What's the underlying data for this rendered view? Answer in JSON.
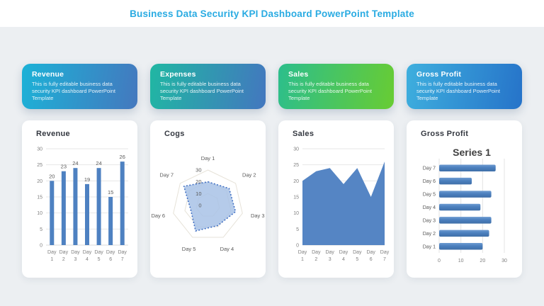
{
  "header": {
    "title": "Business Data Security KPI Dashboard PowerPoint Template"
  },
  "kpi_cards": [
    {
      "title": "Revenue",
      "description": "This is fully editable business data security KPI dashboard PowerPoint Template",
      "gradient_from": "#1CB2D7",
      "gradient_to": "#4478BE"
    },
    {
      "title": "Expenses",
      "description": "This is fully editable business data security KPI dashboard PowerPoint Template",
      "gradient_from": "#20B7A3",
      "gradient_to": "#4377BF"
    },
    {
      "title": "Sales",
      "description": "This is fully editable business data security KPI dashboard PowerPoint Template",
      "gradient_from": "#2CBE8C",
      "gradient_to": "#68CC33"
    },
    {
      "title": "Gross Profit",
      "description": "This is fully editable business data security KPI dashboard PowerPoint Template",
      "gradient_from": "#3EAFDE",
      "gradient_to": "#2673C9"
    }
  ],
  "chart_data": [
    {
      "type": "bar",
      "panel_title": "Revenue",
      "categories": [
        "Day 1",
        "Day 2",
        "Day 3",
        "Day 4",
        "Day 5",
        "Day 6",
        "Day 7"
      ],
      "values": [
        20,
        23,
        24,
        19,
        24,
        15,
        26
      ],
      "ylim": [
        0,
        30
      ],
      "yticks": [
        0,
        5,
        10,
        15,
        20,
        25,
        30
      ],
      "data_labels": true,
      "grid": true,
      "legend": false,
      "bar_color": "#4E81C1"
    },
    {
      "type": "radar",
      "panel_title": "Cogs",
      "categories": [
        "Day 1",
        "Day 2",
        "Day 3",
        "Day 4",
        "Day 5",
        "Day 6",
        "Day 7"
      ],
      "values": [
        20,
        23,
        24,
        19,
        24,
        15,
        26
      ],
      "rlim": [
        0,
        30
      ],
      "rticks": [
        0,
        10,
        20,
        30
      ],
      "grid": true,
      "legend": false,
      "fill_color": "#A8C2E6",
      "stroke_color": "#4472C4"
    },
    {
      "type": "area",
      "panel_title": "Sales",
      "categories": [
        "Day 1",
        "Day 2",
        "Day 3",
        "Day 4",
        "Day 5",
        "Day 6",
        "Day 7"
      ],
      "values": [
        20,
        23,
        24,
        19,
        24,
        15,
        26
      ],
      "ylim": [
        0,
        30
      ],
      "yticks": [
        0,
        5,
        10,
        15,
        20,
        25,
        30
      ],
      "grid": true,
      "legend": false,
      "fill_color": "#5585C4"
    },
    {
      "type": "bar-horizontal",
      "panel_title": "Gross Profit",
      "chart_title": "Series 1",
      "categories": [
        "Day 1",
        "Day 2",
        "Day 3",
        "Day 4",
        "Day 5",
        "Day 6",
        "Day 7"
      ],
      "values": [
        20,
        23,
        24,
        19,
        24,
        15,
        26
      ],
      "display_order_top_to_bottom": [
        "Day 7",
        "Day 6",
        "Day 5",
        "Day 4",
        "Day 3",
        "Day 2",
        "Day 1"
      ],
      "xlim": [
        0,
        30
      ],
      "xticks": [
        0,
        10,
        20,
        30
      ],
      "grid": true,
      "legend": false,
      "bar_color": "#4B7FBE"
    }
  ],
  "colors": {
    "page_title": "#29ABE2",
    "background": "#ECEFF2",
    "card_background": "#FFFFFF",
    "panel_title_text": "#343840",
    "axis_text": "#7F7F7F",
    "data_label_text": "#595959",
    "gridline": "#E7E7E7",
    "bar_blue": "#4E81C1",
    "area_blue": "#5585C4",
    "radar_fill": "#A8C2E6",
    "radar_stroke": "#4472C4"
  }
}
